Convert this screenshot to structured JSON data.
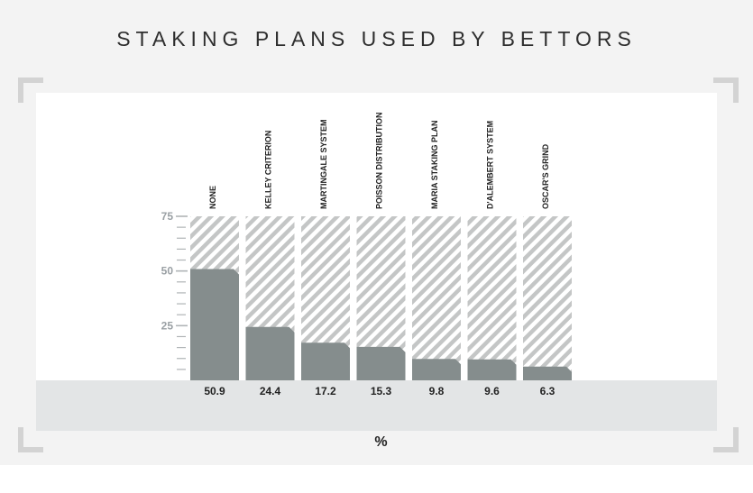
{
  "title": "STAKING PLANS USED BY BETTORS",
  "unit_label": "%",
  "colors": {
    "bar": "#858d8d",
    "hatch": "#c4c6c6",
    "axis": "#b0b4b6",
    "tick_text": "#9aa0a4"
  },
  "chart_data": {
    "type": "bar",
    "categories": [
      "NONE",
      "KELLEY CRITERION",
      "MARTINGALE SYSTEM",
      "POISSON DISTRIBUTION",
      "MARIA STAKING PLAN",
      "D'ALEMBERT SYSTEM",
      "OSCAR'S GRIND"
    ],
    "values": [
      50.9,
      24.4,
      17.2,
      15.3,
      9.8,
      9.6,
      6.3
    ],
    "value_labels": [
      "50.9",
      "24.4",
      "17.2",
      "15.3",
      "9.8",
      "9.6",
      "6.3"
    ],
    "yticks": [
      25,
      50,
      75
    ],
    "ylim": [
      0,
      75
    ],
    "grid": false,
    "legend": "none"
  }
}
